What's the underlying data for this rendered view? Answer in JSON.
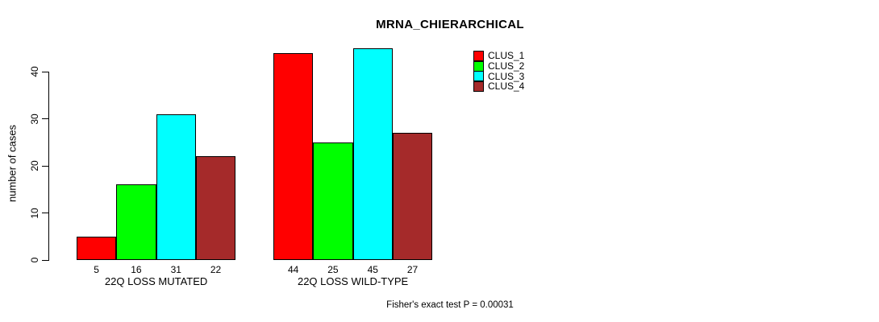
{
  "title": "MRNA_CHIERARCHICAL",
  "footer": "Fisher's exact test P = 0.00031",
  "chart_data": {
    "type": "bar",
    "title": "MRNA_CHIERARCHICAL",
    "xlabel": "",
    "ylabel": "number of cases",
    "categories": [
      "22Q LOSS MUTATED",
      "22Q LOSS WILD-TYPE"
    ],
    "series": [
      {
        "name": "CLUS_1",
        "color": "#FF0000",
        "values": [
          5,
          44
        ]
      },
      {
        "name": "CLUS_2",
        "color": "#00FF00",
        "values": [
          16,
          25
        ]
      },
      {
        "name": "CLUS_3",
        "color": "#00FFFF",
        "values": [
          31,
          45
        ]
      },
      {
        "name": "CLUS_4",
        "color": "#A52A2A",
        "values": [
          22,
          27
        ]
      }
    ],
    "bar_value_labels": [
      [
        5,
        16,
        31,
        22
      ],
      [
        44,
        25,
        45,
        27
      ]
    ],
    "yticks": [
      0,
      10,
      20,
      30,
      40
    ],
    "ylim": [
      0,
      45.5
    ],
    "grid": false,
    "legend_position": "top-right",
    "legend_entries": [
      "CLUS_1",
      "CLUS_2",
      "CLUS_3",
      "CLUS_4"
    ],
    "annotation": "Fisher's exact test P = 0.00031",
    "bar_border_color": "#000000",
    "background_color": "#FFFFFF"
  }
}
